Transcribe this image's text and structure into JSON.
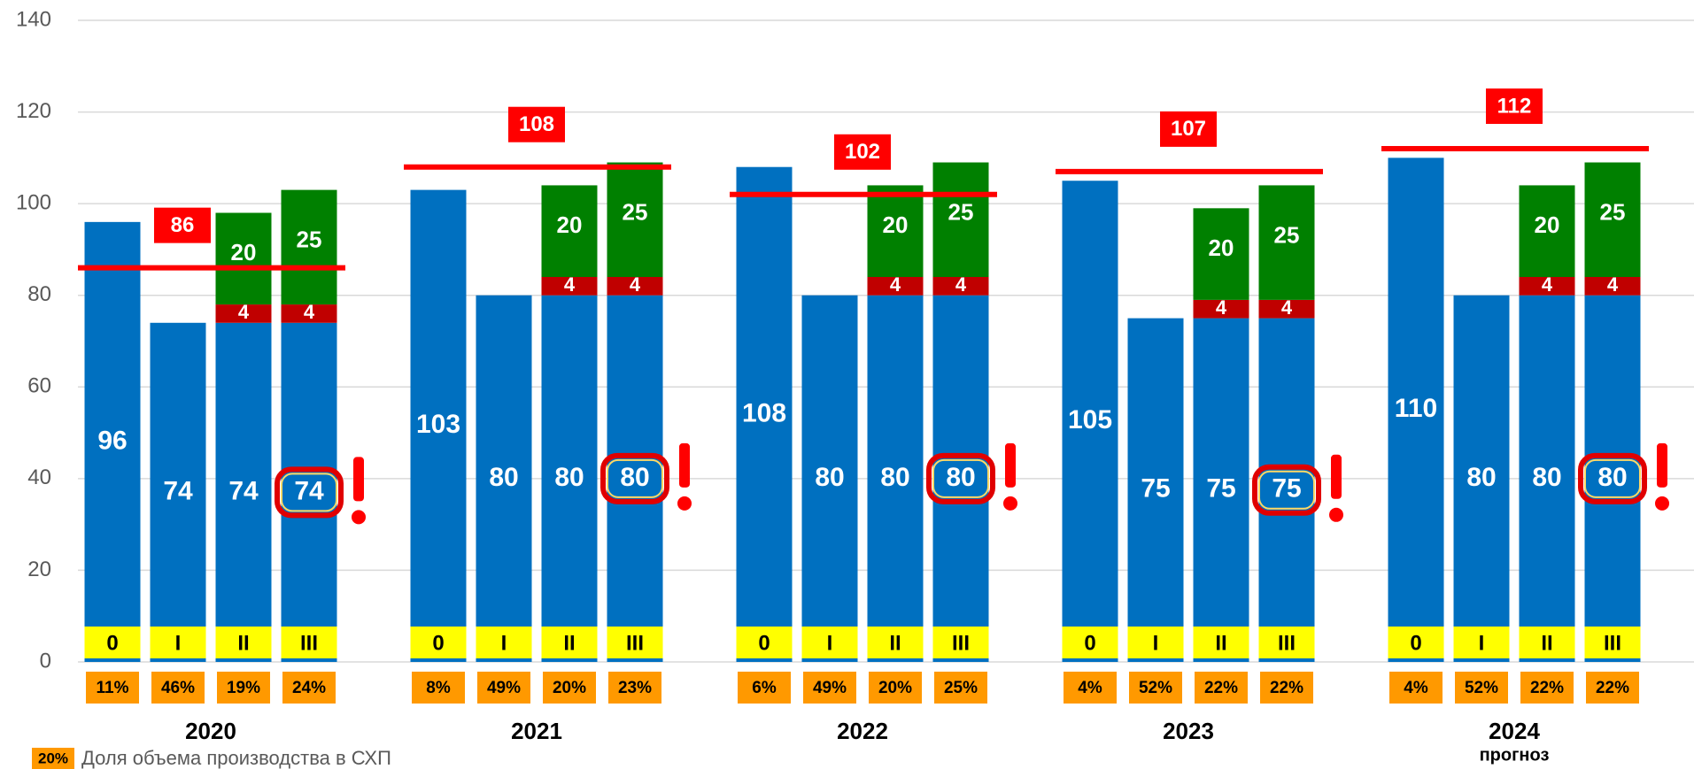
{
  "chart_data": {
    "type": "bar",
    "stacked": true,
    "ylim": [
      0,
      140
    ],
    "yticks": [
      0,
      20,
      40,
      60,
      80,
      100,
      120,
      140
    ],
    "grid": true,
    "group_labels": [
      "2020",
      "2021",
      "2022",
      "2023",
      "2024"
    ],
    "forecast_note": "прогноз",
    "categories": [
      "0",
      "I",
      "II",
      "III",
      "0",
      "I",
      "II",
      "III",
      "0",
      "I",
      "II",
      "III",
      "0",
      "I",
      "II",
      "III",
      "0",
      "I",
      "II",
      "III"
    ],
    "series": [
      {
        "color": "#0070c0",
        "values": [
          96,
          74,
          74,
          74,
          103,
          80,
          80,
          80,
          108,
          80,
          80,
          80,
          105,
          75,
          75,
          75,
          110,
          80,
          80,
          80
        ]
      },
      {
        "color": "#c00000",
        "values": [
          null,
          null,
          4,
          4,
          null,
          null,
          4,
          4,
          null,
          null,
          4,
          4,
          null,
          null,
          4,
          4,
          null,
          null,
          4,
          4
        ]
      },
      {
        "color": "#008000",
        "values": [
          null,
          null,
          20,
          25,
          null,
          null,
          20,
          25,
          null,
          null,
          20,
          25,
          null,
          null,
          20,
          25,
          null,
          null,
          20,
          25
        ]
      }
    ],
    "targets": {
      "color": "#ff0000",
      "values": [
        86,
        108,
        102,
        107,
        112
      ]
    },
    "shares": {
      "color": "#ff9900",
      "values": [
        11,
        46,
        19,
        24,
        8,
        49,
        20,
        23,
        6,
        49,
        20,
        25,
        4,
        52,
        22,
        22,
        4,
        52,
        22,
        22
      ],
      "value_labels": [
        "11%",
        "46%",
        "19%",
        "24%",
        "8%",
        "49%",
        "20%",
        "23%",
        "6%",
        "49%",
        "20%",
        "25%",
        "4%",
        "52%",
        "22%",
        "22%",
        "4%",
        "52%",
        "22%",
        "22%"
      ]
    },
    "legend": {
      "sample": "20%",
      "text": "Доля объема производства в СХП"
    }
  }
}
